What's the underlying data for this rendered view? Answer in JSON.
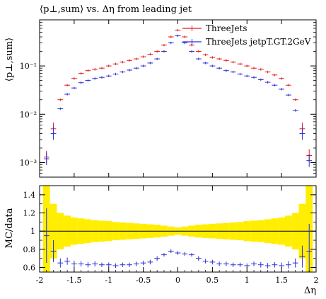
{
  "chart_data": [
    {
      "type": "scatter",
      "title": "⟨p⊥,sum⟩ vs. Δη from leading jet",
      "ylabel": "⟨p⊥,sum⟩",
      "xlabel": "",
      "xlim": [
        -2,
        2
      ],
      "ylim": [
        0.0005,
        0.9
      ],
      "yscale": "log",
      "yticks": [
        "10⁻¹",
        "10⁻²",
        "10⁻³"
      ],
      "legend_position": "top-right",
      "colors": {
        "ThreeJets": "#e41a1c",
        "ThreeJets jetpT.GT.2GeV": "#2c2cd6"
      },
      "series": [
        {
          "name": "ThreeJets",
          "x": [
            -1.9,
            -1.8,
            -1.7,
            -1.6,
            -1.5,
            -1.4,
            -1.3,
            -1.2,
            -1.1,
            -1.0,
            -0.9,
            -0.8,
            -0.7,
            -0.6,
            -0.5,
            -0.4,
            -0.3,
            -0.2,
            -0.1,
            0.0,
            0.1,
            0.2,
            0.3,
            0.4,
            0.5,
            0.6,
            0.7,
            0.8,
            0.9,
            1.0,
            1.1,
            1.2,
            1.3,
            1.4,
            1.5,
            1.6,
            1.7,
            1.8,
            1.9
          ],
          "y": [
            0.0013,
            0.005,
            0.02,
            0.04,
            0.055,
            0.07,
            0.08,
            0.085,
            0.09,
            0.1,
            0.11,
            0.12,
            0.13,
            0.14,
            0.155,
            0.175,
            0.2,
            0.27,
            0.4,
            0.55,
            0.4,
            0.27,
            0.2,
            0.17,
            0.15,
            0.14,
            0.13,
            0.12,
            0.11,
            0.1,
            0.09,
            0.085,
            0.075,
            0.065,
            0.055,
            0.04,
            0.02,
            0.005,
            0.0014
          ]
        },
        {
          "name": "ThreeJets jetpT.GT.2GeV",
          "x": [
            -1.9,
            -1.8,
            -1.7,
            -1.6,
            -1.5,
            -1.4,
            -1.3,
            -1.2,
            -1.1,
            -1.0,
            -0.9,
            -0.8,
            -0.7,
            -0.6,
            -0.5,
            -0.4,
            -0.3,
            -0.2,
            -0.1,
            0.0,
            0.1,
            0.2,
            0.3,
            0.4,
            0.5,
            0.6,
            0.7,
            0.8,
            0.9,
            1.0,
            1.1,
            1.2,
            1.3,
            1.4,
            1.5,
            1.6,
            1.7,
            1.8,
            1.9
          ],
          "y": [
            0.0012,
            0.004,
            0.013,
            0.026,
            0.035,
            0.045,
            0.05,
            0.055,
            0.058,
            0.062,
            0.068,
            0.075,
            0.082,
            0.09,
            0.1,
            0.115,
            0.14,
            0.2,
            0.3,
            0.42,
            0.3,
            0.2,
            0.14,
            0.115,
            0.1,
            0.09,
            0.08,
            0.075,
            0.068,
            0.062,
            0.058,
            0.052,
            0.046,
            0.04,
            0.033,
            0.025,
            0.012,
            0.004,
            0.0011
          ]
        }
      ]
    },
    {
      "type": "scatter",
      "title": "",
      "ylabel": "MC/data",
      "xlabel": "Δη",
      "xlim": [
        -2,
        2
      ],
      "ylim": [
        0.55,
        1.5
      ],
      "xticks": [
        "-2",
        "-1.5",
        "-1",
        "-0.5",
        "0",
        "0.5",
        "1",
        "1.5",
        "2"
      ],
      "yticks": [
        "1.4",
        "1.2",
        "1",
        "0.8",
        "0.6"
      ],
      "reference_line": 1,
      "colors": {
        "band": "#ffee00",
        "ratio": "#2c2cd6"
      },
      "band": {
        "x": [
          -1.9,
          -1.8,
          -1.7,
          -1.6,
          -1.5,
          -1.4,
          -1.3,
          -1.2,
          -1.1,
          -1.0,
          -0.9,
          -0.8,
          -0.7,
          -0.6,
          -0.5,
          -0.4,
          -0.3,
          -0.2,
          -0.1,
          0.0,
          0.1,
          0.2,
          0.3,
          0.4,
          0.5,
          0.6,
          0.7,
          0.8,
          0.9,
          1.0,
          1.1,
          1.2,
          1.3,
          1.4,
          1.5,
          1.6,
          1.7,
          1.8,
          1.9
        ],
        "halfwidth": [
          0.5,
          0.3,
          0.2,
          0.17,
          0.15,
          0.14,
          0.13,
          0.12,
          0.115,
          0.11,
          0.1,
          0.095,
          0.09,
          0.085,
          0.08,
          0.075,
          0.07,
          0.06,
          0.05,
          0.04,
          0.05,
          0.06,
          0.07,
          0.075,
          0.08,
          0.085,
          0.09,
          0.095,
          0.1,
          0.11,
          0.115,
          0.12,
          0.13,
          0.14,
          0.15,
          0.17,
          0.2,
          0.3,
          0.5
        ]
      },
      "series": [
        {
          "name": "",
          "x": [
            -1.9,
            -1.8,
            -1.7,
            -1.6,
            -1.5,
            -1.4,
            -1.3,
            -1.2,
            -1.1,
            -1.0,
            -0.9,
            -0.8,
            -0.7,
            -0.6,
            -0.5,
            -0.4,
            -0.3,
            -0.2,
            -0.1,
            0.0,
            0.1,
            0.2,
            0.3,
            0.4,
            0.5,
            0.6,
            0.7,
            0.8,
            0.9,
            1.0,
            1.1,
            1.2,
            1.3,
            1.4,
            1.5,
            1.6,
            1.7,
            1.8,
            1.9
          ],
          "y": [
            0.95,
            0.78,
            0.65,
            0.67,
            0.64,
            0.64,
            0.63,
            0.64,
            0.63,
            0.63,
            0.62,
            0.63,
            0.63,
            0.64,
            0.65,
            0.66,
            0.7,
            0.74,
            0.78,
            0.76,
            0.75,
            0.74,
            0.7,
            0.67,
            0.66,
            0.64,
            0.64,
            0.63,
            0.63,
            0.62,
            0.64,
            0.63,
            0.62,
            0.63,
            0.62,
            0.63,
            0.65,
            0.72,
            0.78
          ],
          "err": [
            0.3,
            0.12,
            0.05,
            0.04,
            0.035,
            0.03,
            0.03,
            0.03,
            0.025,
            0.025,
            0.025,
            0.025,
            0.025,
            0.025,
            0.025,
            0.025,
            0.025,
            0.02,
            0.02,
            0.02,
            0.02,
            0.02,
            0.025,
            0.025,
            0.025,
            0.025,
            0.025,
            0.025,
            0.025,
            0.025,
            0.025,
            0.03,
            0.03,
            0.03,
            0.035,
            0.04,
            0.05,
            0.12,
            0.3
          ]
        }
      ]
    }
  ]
}
